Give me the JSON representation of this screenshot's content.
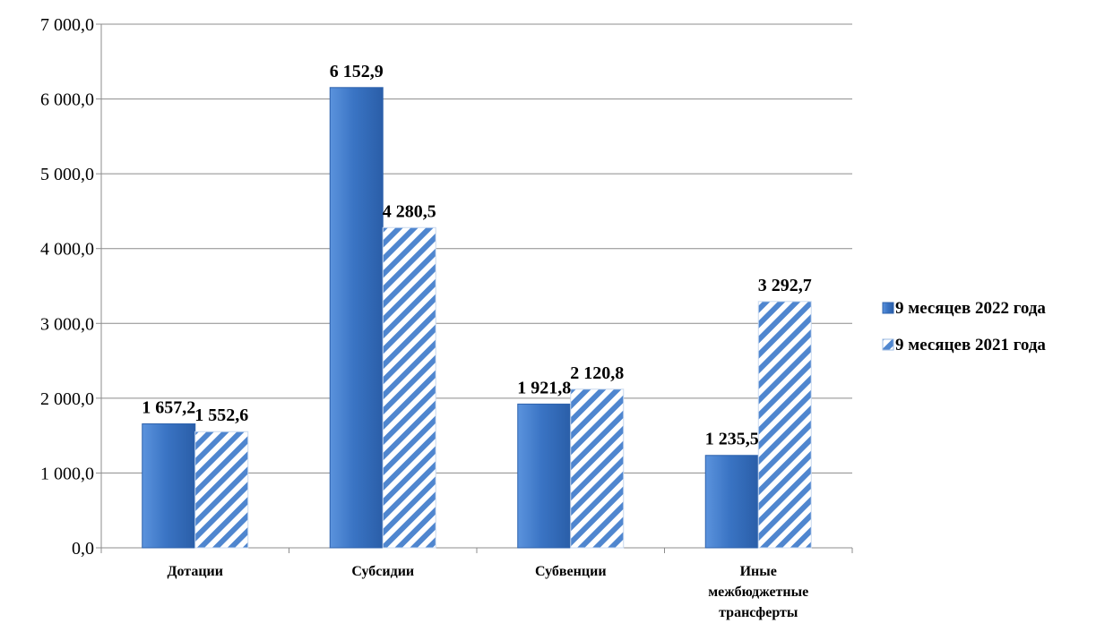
{
  "chart_data": {
    "type": "bar",
    "categories": [
      [
        "Дотации"
      ],
      [
        "Субсидии"
      ],
      [
        "Субвенции"
      ],
      [
        "Иные",
        "межбюджетные",
        "трансферты"
      ]
    ],
    "series": [
      {
        "name": "9 месяцев 2022 года",
        "values": [
          1657.2,
          6152.9,
          1921.8,
          1235.5
        ],
        "labels": [
          "1 657,2",
          "6 152,9",
          "1 921,8",
          "1 235,5"
        ],
        "color": "#3a74c4",
        "pattern": "solid"
      },
      {
        "name": "9 месяцев 2021 года",
        "values": [
          1552.6,
          4280.5,
          2120.8,
          3292.7
        ],
        "labels": [
          "1 552,6",
          "4 280,5",
          "2 120,8",
          "3 292,7"
        ],
        "color": "#4f86cf",
        "pattern": "diagonal-stripes"
      }
    ],
    "ylim": [
      0,
      7000
    ],
    "yticks": [
      0,
      1000,
      2000,
      3000,
      4000,
      5000,
      6000,
      7000
    ],
    "ytick_labels": [
      "0,0",
      "1 000,0",
      "2 000,0",
      "3 000,0",
      "4 000,0",
      "5 000,0",
      "6 000,0",
      "7 000,0"
    ],
    "grid": true,
    "legend": "right",
    "title": "",
    "xlabel": "",
    "ylabel": ""
  }
}
